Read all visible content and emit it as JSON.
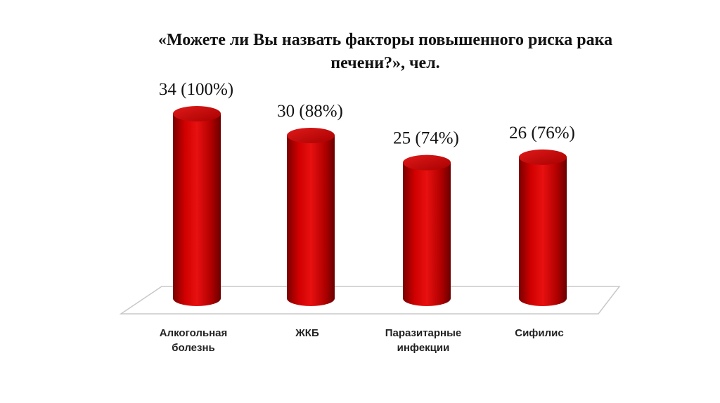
{
  "chart_data": {
    "type": "bar",
    "title_lines": [
      "«Можете ли Вы назвать факторы повышенного риска рака",
      "печени?», чел."
    ],
    "categories": [
      [
        "Алкогольная",
        "болезнь"
      ],
      [
        "ЖКБ"
      ],
      [
        "Паразитарные",
        "инфекции"
      ],
      [
        "Сифилис"
      ]
    ],
    "values": [
      34,
      30,
      25,
      26
    ],
    "value_labels": [
      "34 (100%)",
      "30 (88%)",
      "25 (74%)",
      "26 (76%)"
    ],
    "ylim": [
      0,
      34
    ],
    "grid": false,
    "legend": "none",
    "bar_color": "#c40000",
    "floor_color": "#ffffff"
  }
}
